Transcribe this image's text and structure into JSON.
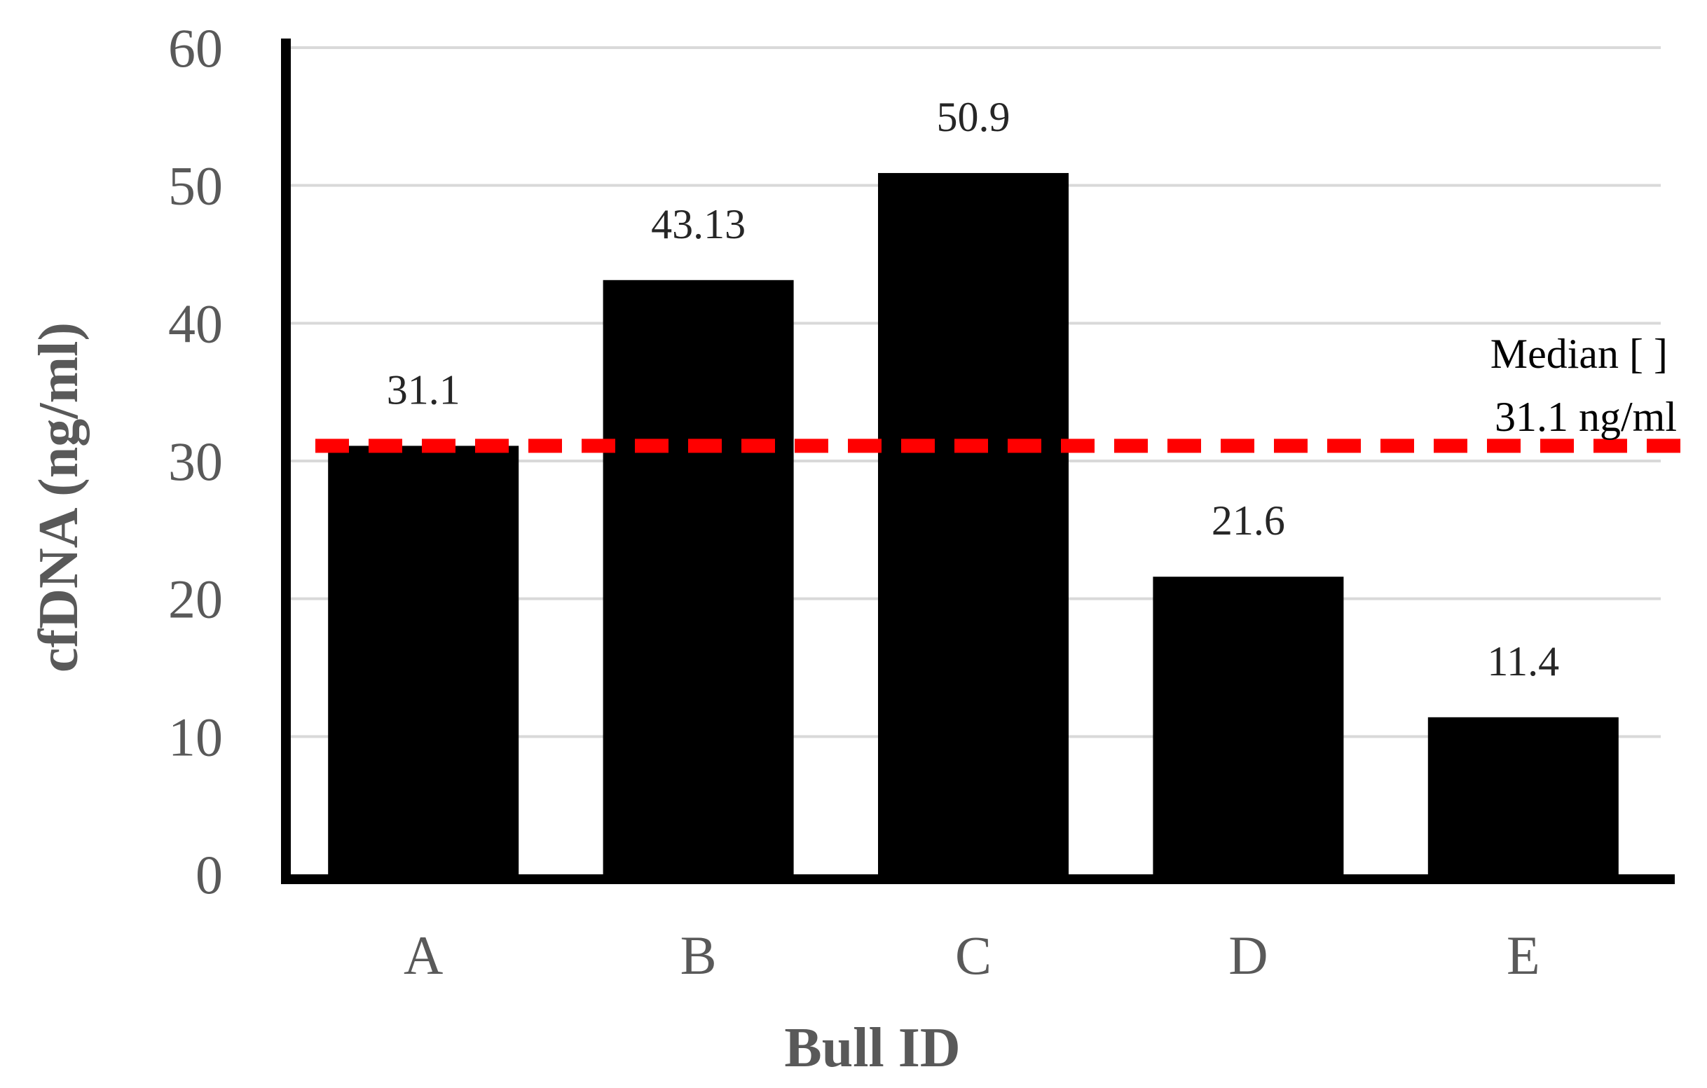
{
  "chart_data": {
    "type": "bar",
    "categories": [
      "A",
      "B",
      "C",
      "D",
      "E"
    ],
    "values": [
      31.1,
      43.13,
      50.9,
      21.6,
      11.4
    ],
    "data_labels": [
      "31.1",
      "43.13",
      "50.9",
      "21.6",
      "11.4"
    ],
    "title": "",
    "xlabel": "Bull ID",
    "ylabel": "cfDNA (ng/ml)",
    "ylim": [
      0,
      60
    ],
    "yticks": [
      0,
      10,
      20,
      30,
      40,
      50,
      60
    ],
    "grid": true,
    "bar_color": "#000000",
    "reference_line": {
      "value": 31.1,
      "label_line1": "Median [ ]",
      "label_line2": "31.1 ng/ml",
      "color": "#ff0000",
      "style": "dashed"
    }
  }
}
